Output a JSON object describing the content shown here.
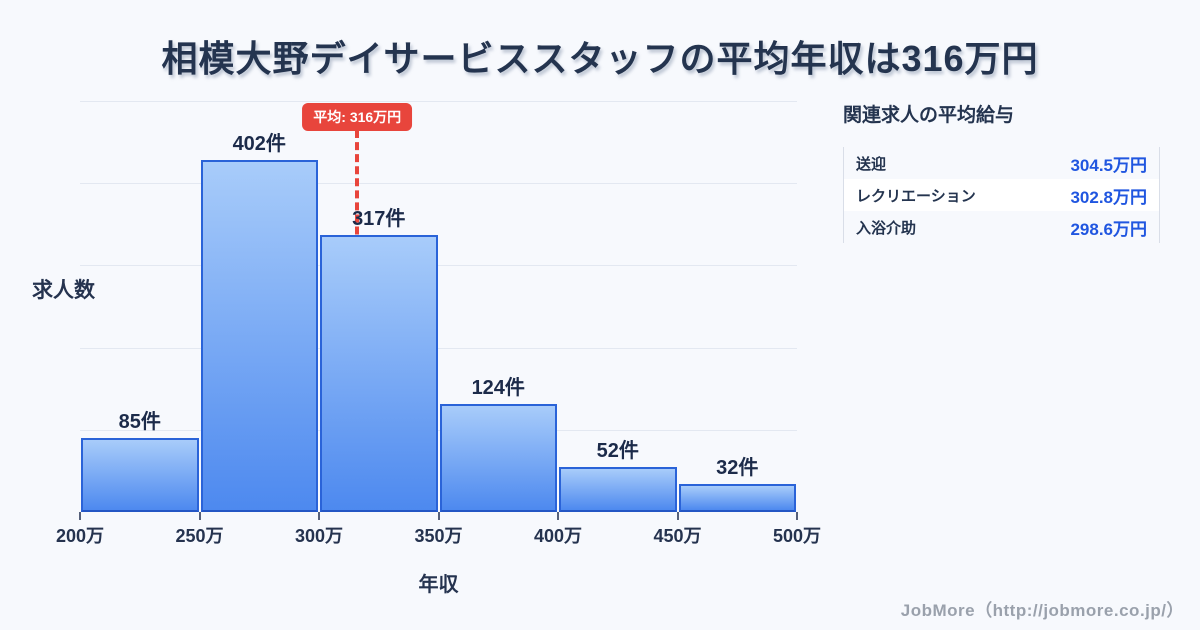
{
  "title": "相模大野デイサービススタッフの平均年収は316万円",
  "chart_data": {
    "type": "bar",
    "subtype": "histogram",
    "title": "相模大野デイサービススタッフの平均年収は316万円",
    "xlabel": "年収",
    "ylabel": "求人数",
    "bin_edges": [
      200,
      250,
      300,
      350,
      400,
      450,
      500
    ],
    "tick_labels": [
      "200万",
      "250万",
      "300万",
      "350万",
      "400万",
      "450万",
      "500万"
    ],
    "counts": [
      85,
      402,
      317,
      124,
      52,
      32
    ],
    "bar_labels": [
      "85件",
      "402件",
      "317件",
      "124件",
      "52件",
      "32件"
    ],
    "mean": 316,
    "mean_label": "平均: 316万円",
    "xlim": [
      200,
      500
    ],
    "ylim": [
      0,
      470
    ],
    "grid": "horizontal",
    "legend": "none"
  },
  "side_panel": {
    "title": "関連求人の平均給与",
    "rows": [
      {
        "label": "送迎",
        "value": "304.5万円"
      },
      {
        "label": "レクリエーション",
        "value": "302.8万円"
      },
      {
        "label": "入浴介助",
        "value": "298.6万円"
      }
    ]
  },
  "footer": {
    "credit": "JobMore（http://jobmore.co.jp/）"
  },
  "colors": {
    "background": "#f7f9fd",
    "title_text": "#24344f",
    "bar_fill_top": "#a8ccfa",
    "bar_fill_bottom": "#4d89ef",
    "bar_border": "#2a63d8",
    "gridline": "#e3e8f1",
    "mean_accent": "#e8453c",
    "badge_text": "#ffffff",
    "panel_value_text": "#2056e0",
    "footer_text": "#9aa1ac"
  }
}
